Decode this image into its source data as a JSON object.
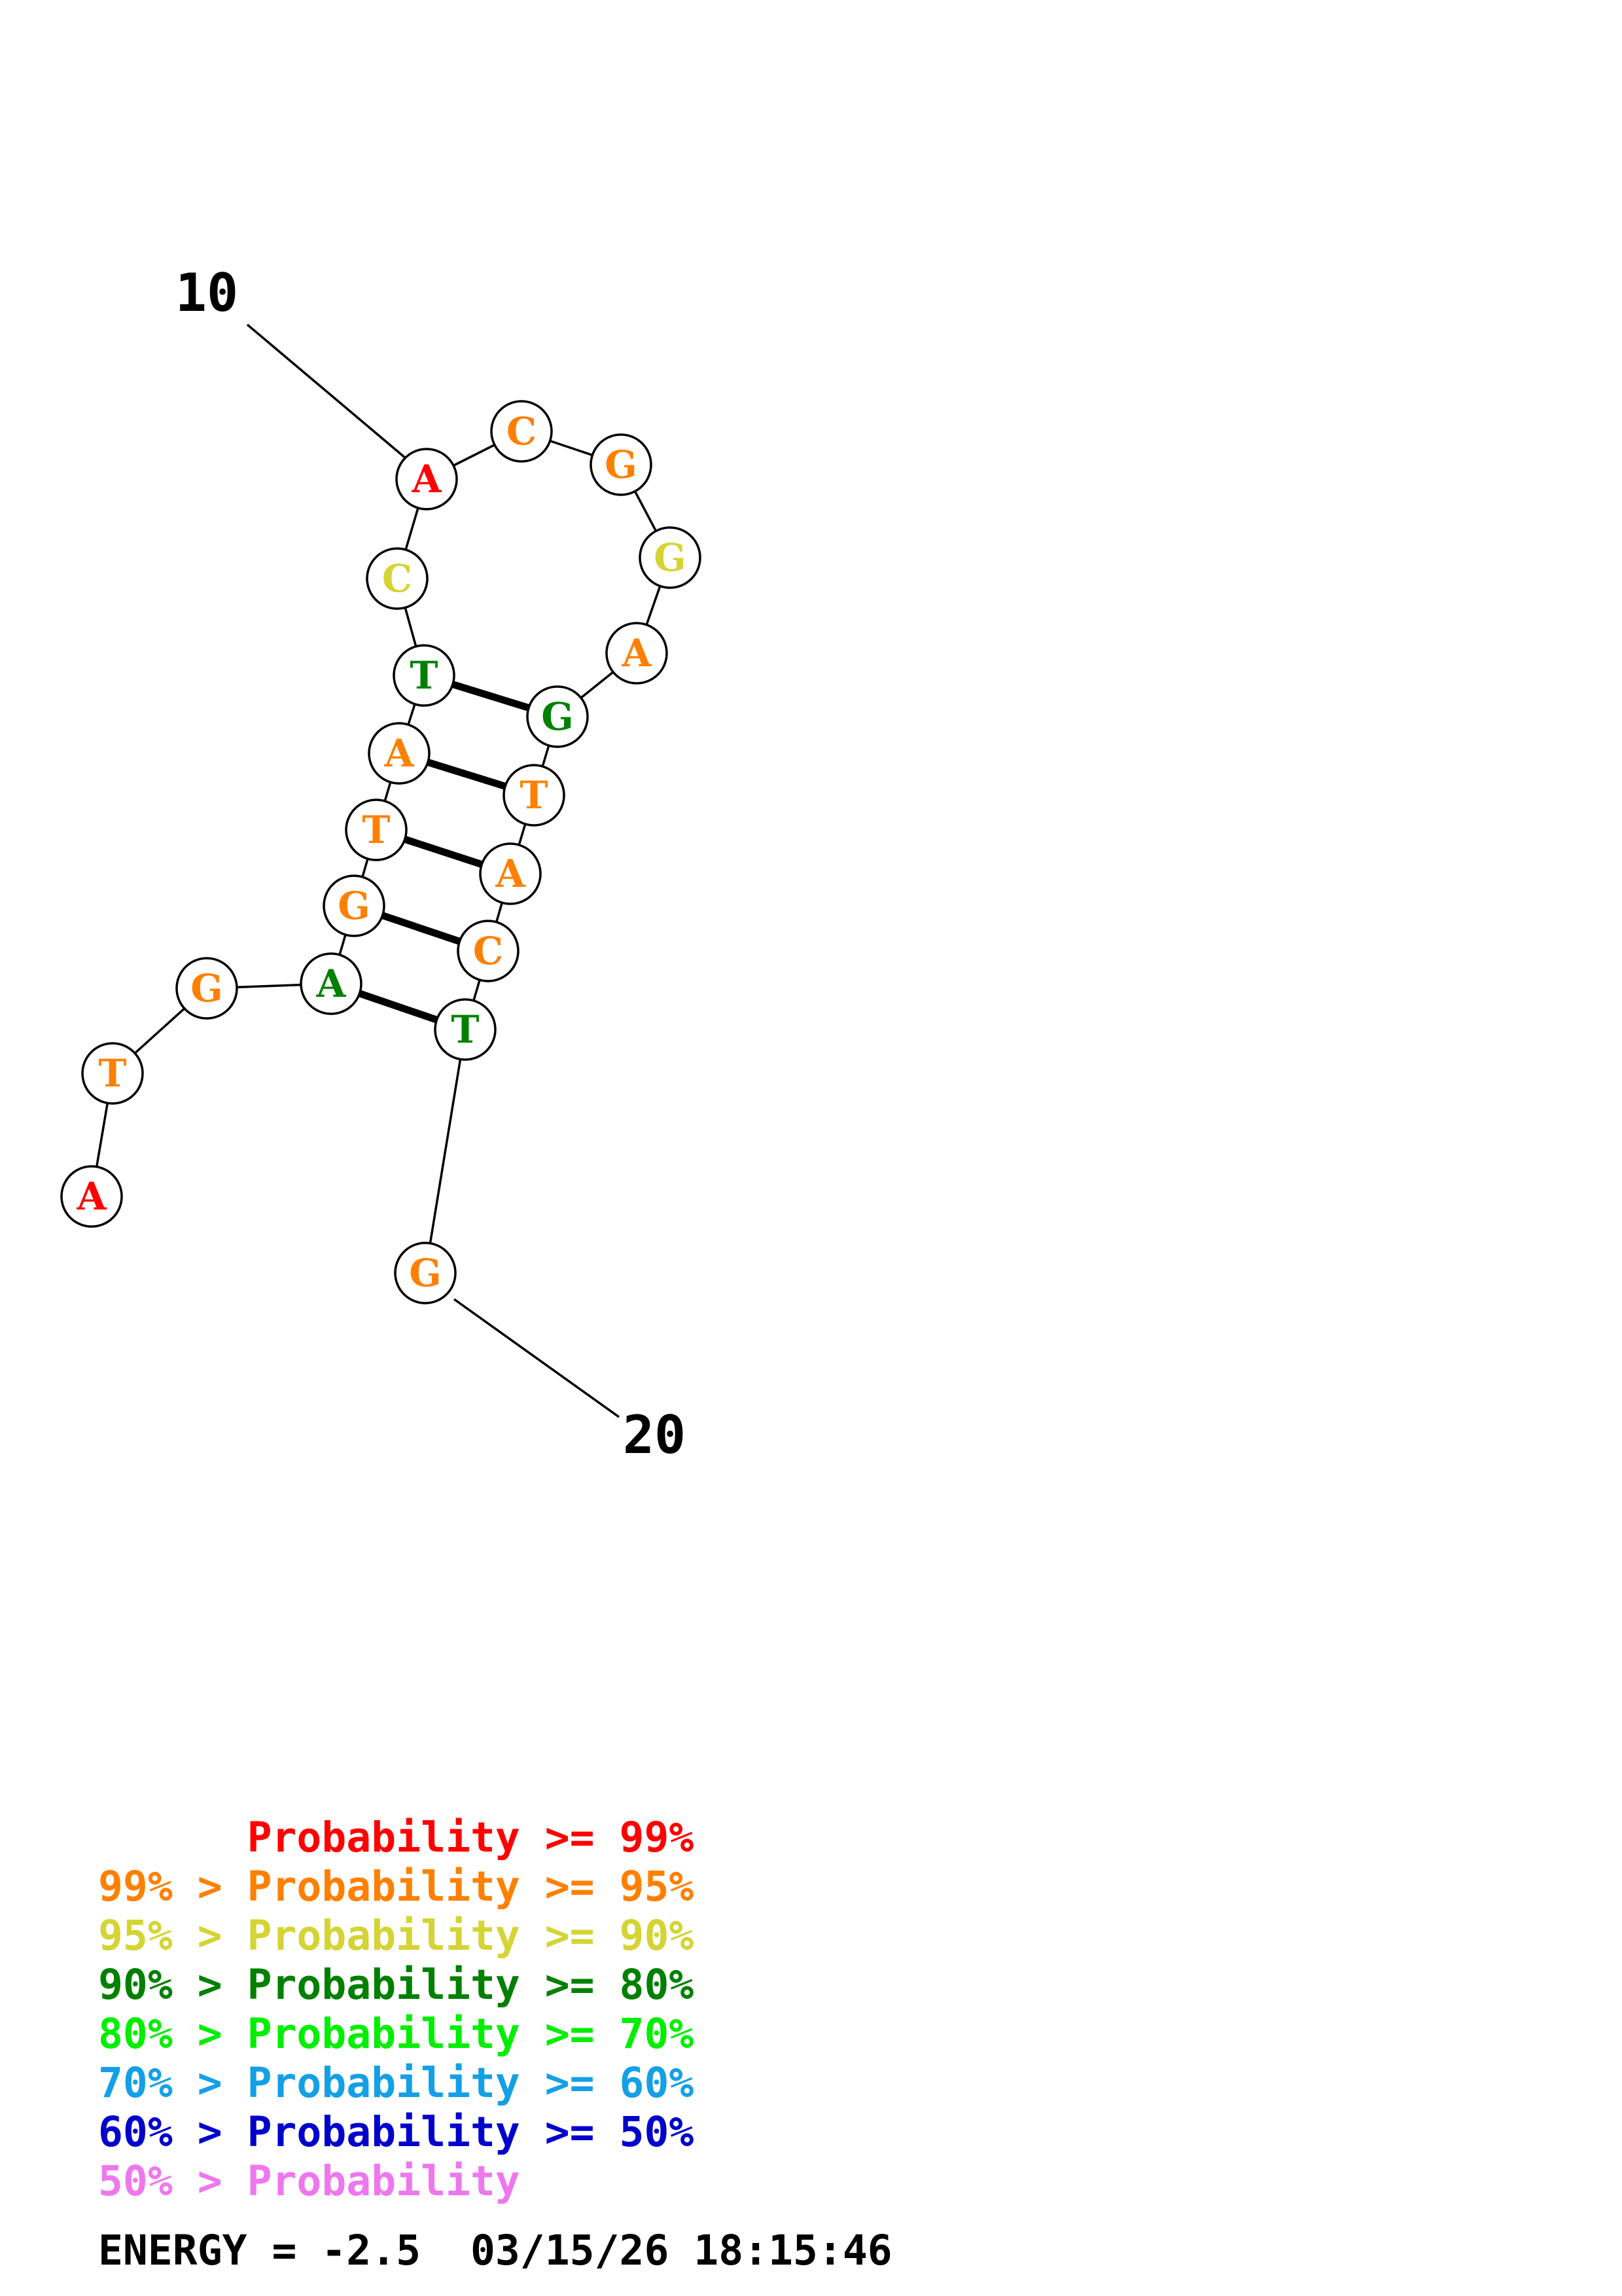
{
  "colors": {
    "p99": "#ff0000",
    "p95": "#ff8000",
    "p90": "#d4d435",
    "p80": "#008000",
    "p70": "#00ee00",
    "p60": "#14a0e6",
    "p50": "#0000cc",
    "plow": "#ee77ee"
  },
  "sequence_labels": [
    {
      "text": "10",
      "at_index": 9
    },
    {
      "text": "20",
      "at_index": 19
    }
  ],
  "nucleotides": [
    {
      "index": 1,
      "base": "A",
      "prob_class": "p99"
    },
    {
      "index": 2,
      "base": "T",
      "prob_class": "p95"
    },
    {
      "index": 3,
      "base": "G",
      "prob_class": "p95"
    },
    {
      "index": 4,
      "base": "A",
      "prob_class": "p80"
    },
    {
      "index": 5,
      "base": "G",
      "prob_class": "p95"
    },
    {
      "index": 6,
      "base": "T",
      "prob_class": "p95"
    },
    {
      "index": 7,
      "base": "A",
      "prob_class": "p95"
    },
    {
      "index": 8,
      "base": "T",
      "prob_class": "p80"
    },
    {
      "index": 9,
      "base": "C",
      "prob_class": "p90"
    },
    {
      "index": 10,
      "base": "A",
      "prob_class": "p99"
    },
    {
      "index": 11,
      "base": "C",
      "prob_class": "p95"
    },
    {
      "index": 12,
      "base": "G",
      "prob_class": "p95"
    },
    {
      "index": 13,
      "base": "G",
      "prob_class": "p90"
    },
    {
      "index": 14,
      "base": "A",
      "prob_class": "p95"
    },
    {
      "index": 15,
      "base": "G",
      "prob_class": "p80"
    },
    {
      "index": 16,
      "base": "T",
      "prob_class": "p95"
    },
    {
      "index": 17,
      "base": "A",
      "prob_class": "p95"
    },
    {
      "index": 18,
      "base": "C",
      "prob_class": "p95"
    },
    {
      "index": 19,
      "base": "T",
      "prob_class": "p80"
    },
    {
      "index": 20,
      "base": "G",
      "prob_class": "p95"
    }
  ],
  "base_pairs": [
    [
      4,
      19
    ],
    [
      5,
      18
    ],
    [
      6,
      17
    ],
    [
      7,
      16
    ],
    [
      8,
      15
    ]
  ],
  "legend": [
    {
      "prefix": "    ",
      "label": "Probability >= 99%",
      "color_key": "p99"
    },
    {
      "prefix": "99% > ",
      "label": "Probability >= 95%",
      "color_key": "p95"
    },
    {
      "prefix": "95% > ",
      "label": "Probability >= 90%",
      "color_key": "p90"
    },
    {
      "prefix": "90% > ",
      "label": "Probability >= 80%",
      "color_key": "p80"
    },
    {
      "prefix": "80% > ",
      "label": "Probability >= 70%",
      "color_key": "p70"
    },
    {
      "prefix": "70% > ",
      "label": "Probability >= 60%",
      "color_key": "p60"
    },
    {
      "prefix": "60% > ",
      "label": "Probability >= 50%",
      "color_key": "p50"
    },
    {
      "prefix": "50% > ",
      "label": "Probability",
      "color_key": "plow"
    }
  ],
  "energy_text": "ENERGY = -2.5  03/15/26 18:15:46"
}
